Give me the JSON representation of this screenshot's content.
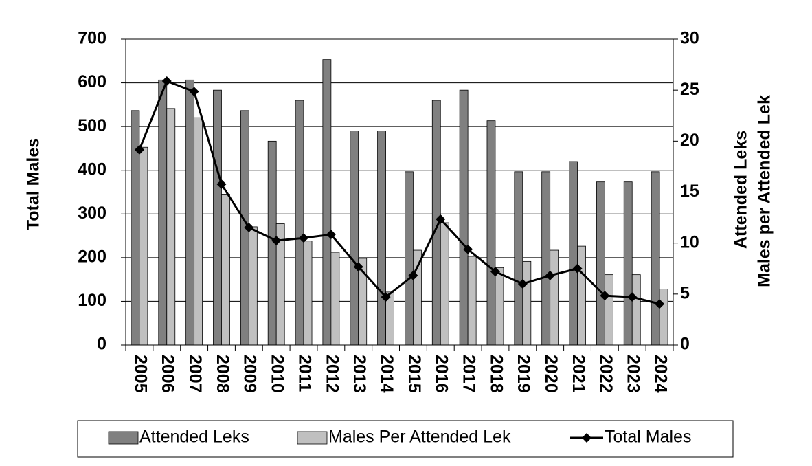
{
  "chart_data": {
    "type": "bar",
    "y_label": "Total Males",
    "y2_label": [
      "Attended Leks",
      "Males per Attended Lek"
    ],
    "categories": [
      "2005",
      "2006",
      "2007",
      "2008",
      "2009",
      "2010",
      "2011",
      "2012",
      "2013",
      "2014",
      "2015",
      "2016",
      "2017",
      "2018",
      "2019",
      "2020",
      "2021",
      "2022",
      "2023",
      "2024"
    ],
    "series": [
      {
        "name": "Attended Leks",
        "type": "bar",
        "axis": "y2",
        "color": "#808080",
        "values": [
          23,
          26,
          26,
          25,
          23,
          20,
          24,
          28,
          21,
          21,
          17,
          24,
          25,
          22,
          17,
          17,
          18,
          16,
          16,
          17
        ]
      },
      {
        "name": "Males Per Attended Lek",
        "type": "bar",
        "axis": "y2",
        "color": "#c0c0c0",
        "values": [
          19.4,
          23.2,
          22.3,
          14.8,
          11.6,
          11.9,
          10.2,
          9.1,
          8.5,
          5.2,
          9.3,
          12.0,
          8.7,
          7.6,
          8.2,
          9.3,
          9.7,
          6.9,
          6.9,
          5.5
        ]
      },
      {
        "name": "Total Males",
        "type": "line",
        "color": "#000000",
        "values": [
          447,
          604,
          580,
          368,
          269,
          239,
          245,
          253,
          179,
          110,
          159,
          288,
          219,
          168,
          140,
          159,
          175,
          113,
          110,
          94
        ]
      }
    ],
    "ylim": [
      0,
      700
    ],
    "yticks": [
      0,
      100,
      200,
      300,
      400,
      500,
      600,
      700
    ],
    "y2lim": [
      0,
      30
    ],
    "y2ticks": [
      0,
      5,
      10,
      15,
      20,
      25,
      30
    ],
    "grid": true,
    "legend": "bottom"
  }
}
